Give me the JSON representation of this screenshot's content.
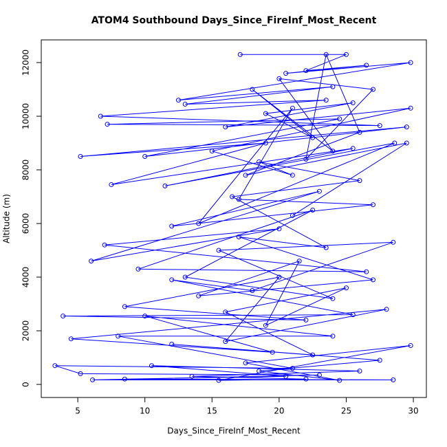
{
  "chart_data": {
    "type": "line",
    "markers": true,
    "title": "ATOM4 Southbound Days_Since_FireInf_Most_Recent",
    "x_label": "Days_Since_FireInf_Most_Recent",
    "y_label": "Altitude (m)",
    "xlim": [
      2.28,
      30.97
    ],
    "xticks": [
      5,
      10,
      15,
      20,
      25,
      30
    ],
    "ylim": [
      -487,
      12846
    ],
    "yticks": [
      0,
      2000,
      4000,
      6000,
      8000,
      10000,
      12000
    ],
    "x": [
      17.1,
      25.0,
      22.0,
      26.5,
      20.5,
      29.8,
      12.5,
      24.0,
      13.0,
      23.5,
      6.7,
      27.5,
      7.2,
      24.5,
      10.0,
      29.5,
      5.2,
      19.0,
      7.5,
      25.5,
      11.5,
      28.6,
      14.0,
      21.0,
      17.0,
      27.0,
      12.0,
      23.0,
      6.0,
      20.0,
      7.0,
      26.5,
      9.5,
      22.5,
      13.0,
      24.0,
      15.5,
      28.5,
      18.0,
      12.0,
      25.5,
      3.9,
      22.0,
      8.5,
      20.0,
      16.0,
      28.0,
      4.5,
      19.5,
      10.0,
      24.0,
      8.0,
      21.0,
      3.3,
      5.2,
      23.0,
      6.1,
      28.5,
      8.5,
      20.5,
      10.5,
      26.0,
      13.5,
      22.0,
      15.5,
      29.8,
      17.5,
      24.5,
      18.5,
      27.5,
      12.0,
      22.5,
      16.0,
      25.0,
      19.0,
      21.5,
      14.0,
      27.0,
      17.0,
      23.5,
      16.5,
      26.0,
      18.5,
      21.0,
      15.0,
      29.8,
      16.0,
      25.5,
      19.0,
      22.5,
      18.0,
      24.0,
      20.0,
      27.0,
      22.0,
      23.5,
      26.0,
      17.5,
      29.5,
      21.0
    ],
    "series": [
      {
        "color": "#0000ff",
        "values": [
          12300,
          12300,
          11700,
          11900,
          11600,
          12000,
          10600,
          11100,
          10450,
          10600,
          10000,
          9650,
          9700,
          9900,
          8500,
          9600,
          8500,
          9000,
          7450,
          8800,
          7400,
          9000,
          6000,
          10300,
          6900,
          6700,
          5900,
          7200,
          4600,
          5800,
          5200,
          4200,
          4300,
          6500,
          4000,
          3200,
          5000,
          5300,
          3500,
          3900,
          2600,
          2550,
          2400,
          2900,
          4000,
          1600,
          2800,
          1700,
          1200,
          2550,
          1800,
          1800,
          600,
          700,
          400,
          350,
          170,
          170,
          200,
          300,
          700,
          500,
          300,
          200,
          150,
          1450,
          800,
          150,
          500,
          900,
          1500,
          1100,
          2700,
          3600,
          2200,
          4600,
          3300,
          3900,
          5500,
          5100,
          7000,
          7600,
          8300,
          7800,
          8700,
          10300,
          9600,
          10500,
          10100,
          9200,
          11000,
          8700,
          11400,
          11000,
          8400,
          12300,
          9400,
          7800,
          9000,
          6300
        ]
      }
    ]
  }
}
